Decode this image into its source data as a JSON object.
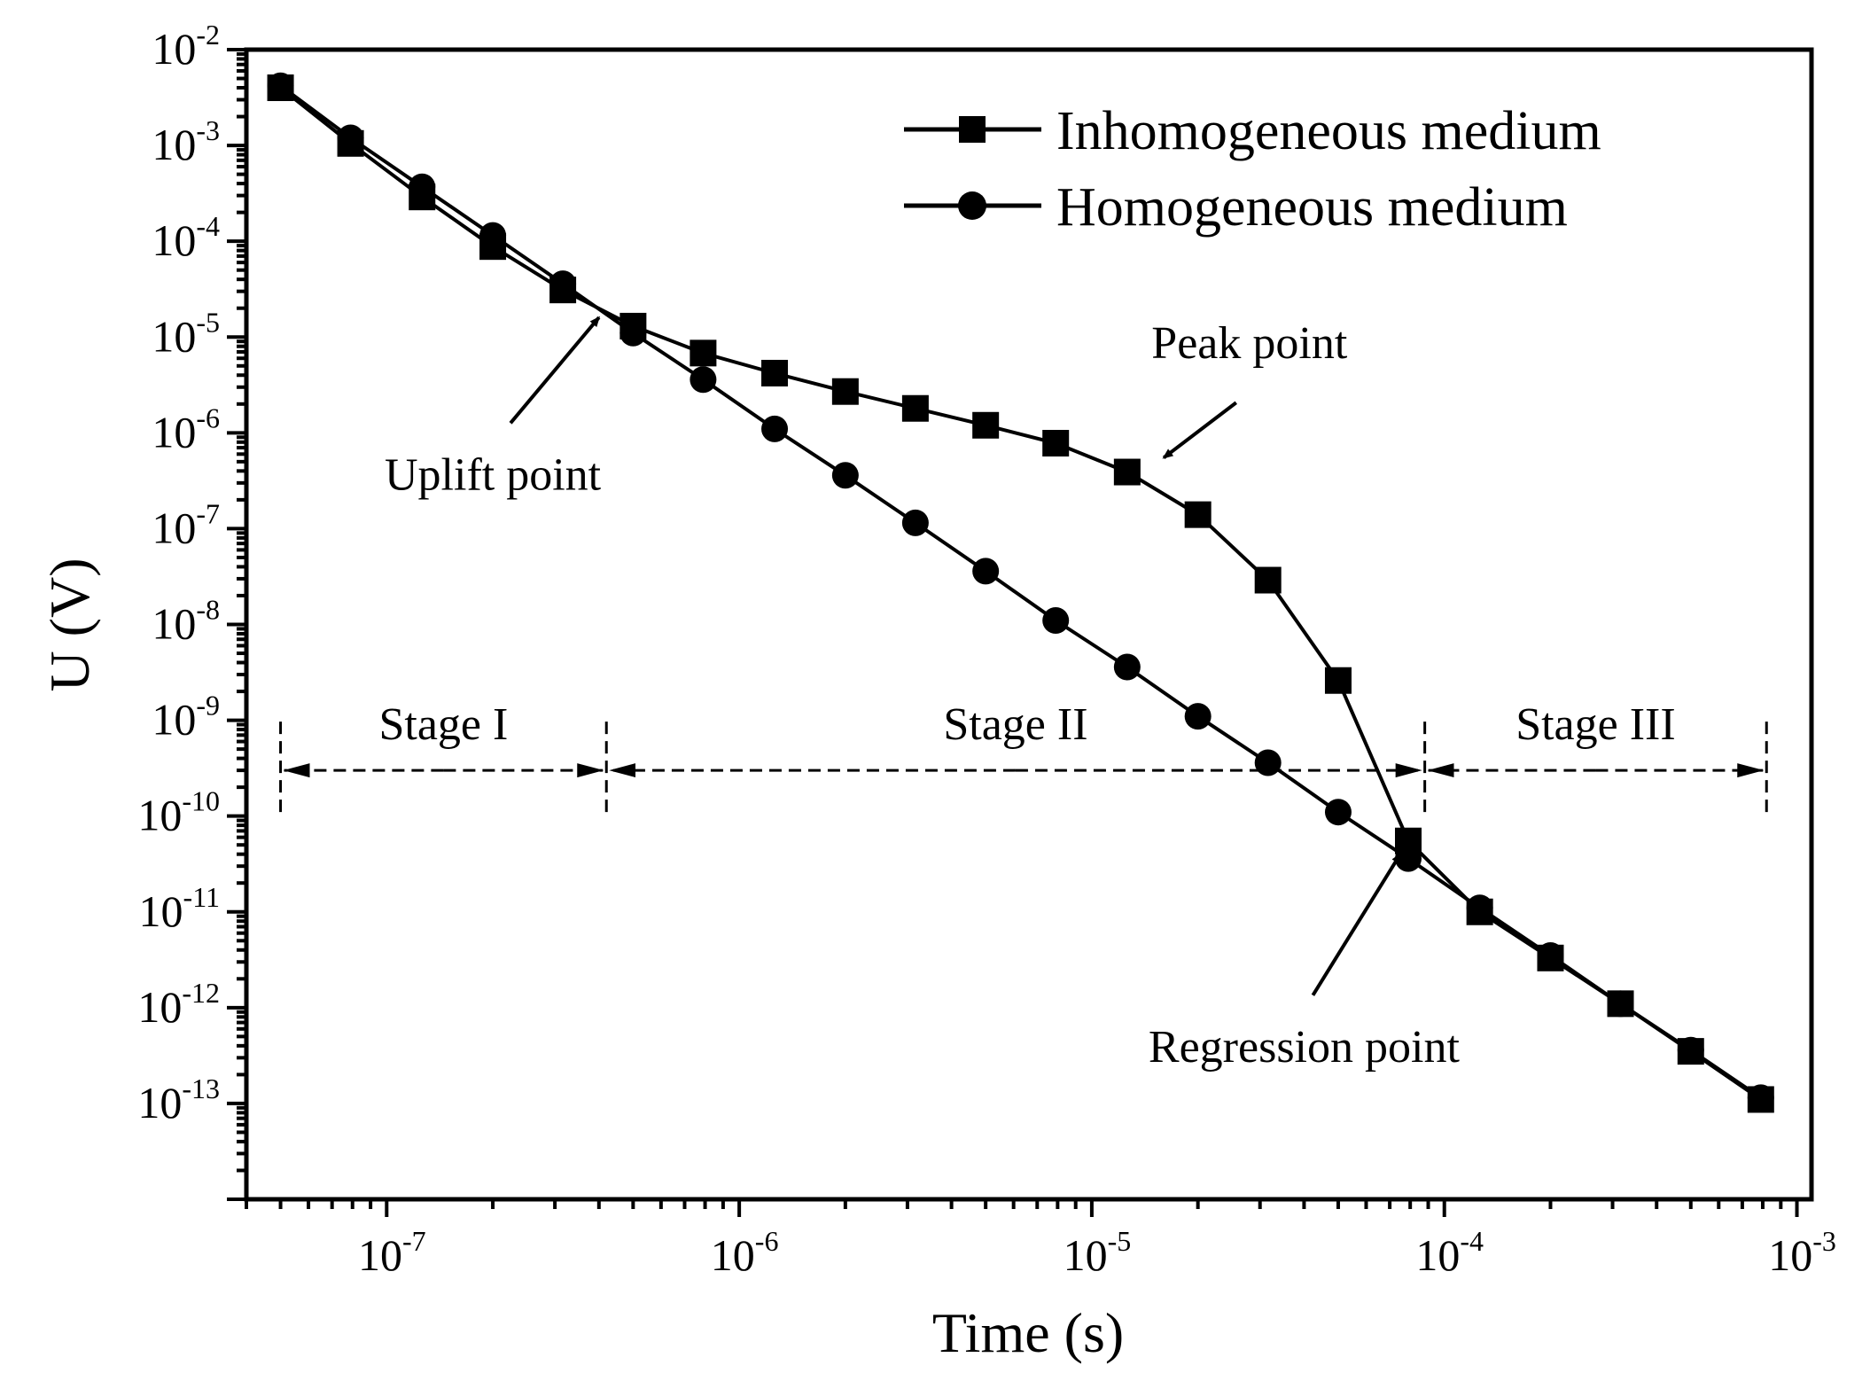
{
  "chart_data": {
    "type": "line",
    "xlabel": "Time (s)",
    "ylabel": "U (V)",
    "x_scale": "log",
    "y_scale": "log",
    "xlim": [
      4e-08,
      0.0011
    ],
    "ylim": [
      1e-14,
      0.01
    ],
    "x_ticks": [
      {
        "value": 1e-07,
        "base": "10",
        "exp": "-7"
      },
      {
        "value": 1e-06,
        "base": "10",
        "exp": "-6"
      },
      {
        "value": 1e-05,
        "base": "10",
        "exp": "-5"
      },
      {
        "value": 0.0001,
        "base": "10",
        "exp": "-4"
      },
      {
        "value": 0.001,
        "base": "10",
        "exp": "-3"
      }
    ],
    "y_ticks": [
      {
        "value": 0.01,
        "base": "10",
        "exp": "-2"
      },
      {
        "value": 0.001,
        "base": "10",
        "exp": "-3"
      },
      {
        "value": 0.0001,
        "base": "10",
        "exp": "-4"
      },
      {
        "value": 1e-05,
        "base": "10",
        "exp": "-5"
      },
      {
        "value": 1e-06,
        "base": "10",
        "exp": "-6"
      },
      {
        "value": 1e-07,
        "base": "10",
        "exp": "-7"
      },
      {
        "value": 1e-08,
        "base": "10",
        "exp": "-8"
      },
      {
        "value": 1e-09,
        "base": "10",
        "exp": "-9"
      },
      {
        "value": 1e-10,
        "base": "10",
        "exp": "-10"
      },
      {
        "value": 1e-11,
        "base": "10",
        "exp": "-11"
      },
      {
        "value": 1e-12,
        "base": "10",
        "exp": "-12"
      },
      {
        "value": 1e-13,
        "base": "10",
        "exp": "-13"
      }
    ],
    "grid": false,
    "legend_position": "top-right",
    "series": [
      {
        "name": "Inhomogeneous medium",
        "marker": "square",
        "x": [
          5e-08,
          7.9e-08,
          1.26e-07,
          2e-07,
          3.16e-07,
          5e-07,
          7.9e-07,
          1.26e-06,
          2e-06,
          3.16e-06,
          5e-06,
          7.9e-06,
          1.26e-05,
          2e-05,
          3.16e-05,
          5e-05,
          7.9e-05,
          0.000126,
          0.0002,
          0.000316,
          0.0005,
          0.00079
        ],
        "y": [
          0.004,
          0.00105,
          0.00029,
          8.8e-05,
          3.1e-05,
          1.3e-05,
          6.8e-06,
          4.2e-06,
          2.7e-06,
          1.8e-06,
          1.2e-06,
          7.8e-07,
          3.9e-07,
          1.4e-07,
          2.9e-08,
          2.6e-09,
          5.5e-11,
          1e-11,
          3.3e-12,
          1.1e-12,
          3.5e-13,
          1.1e-13
        ]
      },
      {
        "name": "Homogeneous medium",
        "marker": "circle",
        "x": [
          5e-08,
          7.9e-08,
          1.26e-07,
          2e-07,
          3.16e-07,
          5e-07,
          7.9e-07,
          1.26e-06,
          2e-06,
          3.16e-06,
          5e-06,
          7.9e-06,
          1.26e-05,
          2e-05,
          3.16e-05,
          5e-05,
          7.9e-05,
          0.000126,
          0.0002,
          0.000316,
          0.0005,
          0.00079
        ],
        "y": [
          0.0042,
          0.0012,
          0.00037,
          0.000115,
          3.6e-05,
          1.1e-05,
          3.6e-06,
          1.1e-06,
          3.6e-07,
          1.15e-07,
          3.6e-08,
          1.1e-08,
          3.6e-09,
          1.1e-09,
          3.6e-10,
          1.1e-10,
          3.6e-11,
          1.1e-11,
          3.5e-12,
          1.1e-12,
          3.6e-13,
          1.15e-13
        ]
      }
    ],
    "annotations": {
      "uplift": {
        "label": "Uplift point",
        "target_x": 4e-07,
        "target_y": 1.6e-05,
        "text_x": 2e-07,
        "text_y": 6e-07
      },
      "peak": {
        "label": "Peak point",
        "target_x": 1.6e-05,
        "target_y": 5.5e-07,
        "text_x": 2.8e-05,
        "text_y": 6e-06
      },
      "regression": {
        "label": "Regression point",
        "target_x": 7.5e-05,
        "target_y": 4e-11,
        "text_x": 4e-05,
        "text_y": 1.5e-12
      }
    },
    "stages": {
      "boundaries": [
        5e-08,
        4.2e-07,
        8.8e-05,
        0.00082
      ],
      "arrow_y": 3e-10,
      "labels": [
        "Stage I",
        "Stage II",
        "Stage III"
      ]
    }
  }
}
